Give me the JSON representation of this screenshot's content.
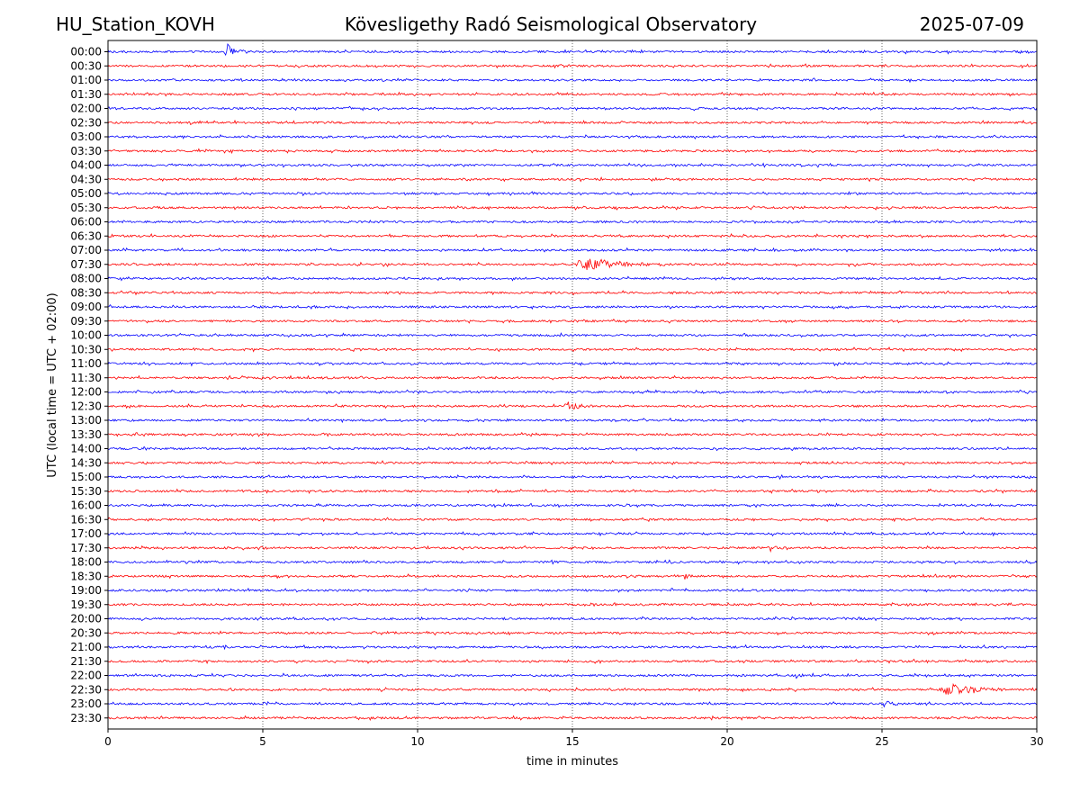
{
  "header": {
    "station": "HU_Station_KOVH",
    "observatory": "Kövesligethy Radó Seismological Observatory",
    "date": "2025-07-09"
  },
  "chart_data": {
    "type": "line",
    "title": "Kövesligethy Radó Seismological Observatory",
    "xlabel": "time in minutes",
    "ylabel": "UTC (local time = UTC + 02:00)",
    "xlim": [
      0,
      30
    ],
    "x_ticks": [
      0,
      5,
      10,
      15,
      20,
      25,
      30
    ],
    "grid": "vertical dotted lines at every 5 minutes",
    "row_labels": [
      "00:00",
      "00:30",
      "01:00",
      "01:30",
      "02:00",
      "02:30",
      "03:00",
      "03:30",
      "04:00",
      "04:30",
      "05:00",
      "05:30",
      "06:00",
      "06:30",
      "07:00",
      "07:30",
      "08:00",
      "08:30",
      "09:00",
      "09:30",
      "10:00",
      "10:30",
      "11:00",
      "11:30",
      "12:00",
      "12:30",
      "13:00",
      "13:30",
      "14:00",
      "14:30",
      "15:00",
      "15:30",
      "16:00",
      "16:30",
      "17:00",
      "17:30",
      "18:00",
      "18:30",
      "19:00",
      "19:30",
      "20:00",
      "20:30",
      "21:00",
      "21:30",
      "22:00",
      "22:30",
      "23:00",
      "23:30"
    ],
    "row_colors": [
      "#0000ff",
      "#ff0000"
    ],
    "events": [
      {
        "row": "00:00",
        "start_min": 3.7,
        "end_min": 4.5,
        "amplitude": 9
      },
      {
        "row": "07:30",
        "start_min": 15.0,
        "end_min": 18.0,
        "amplitude": 7
      },
      {
        "row": "12:30",
        "start_min": 14.7,
        "end_min": 15.6,
        "amplitude": 5
      },
      {
        "row": "17:30",
        "start_min": 21.3,
        "end_min": 21.9,
        "amplitude": 3
      },
      {
        "row": "18:30",
        "start_min": 18.6,
        "end_min": 18.9,
        "amplitude": 4
      },
      {
        "row": "22:00",
        "start_min": 22.2,
        "end_min": 22.5,
        "amplitude": 3
      },
      {
        "row": "22:30",
        "start_min": 26.8,
        "end_min": 29.0,
        "amplitude": 7
      },
      {
        "row": "23:00",
        "start_min": 25.0,
        "end_min": 25.6,
        "amplitude": 3
      }
    ]
  }
}
